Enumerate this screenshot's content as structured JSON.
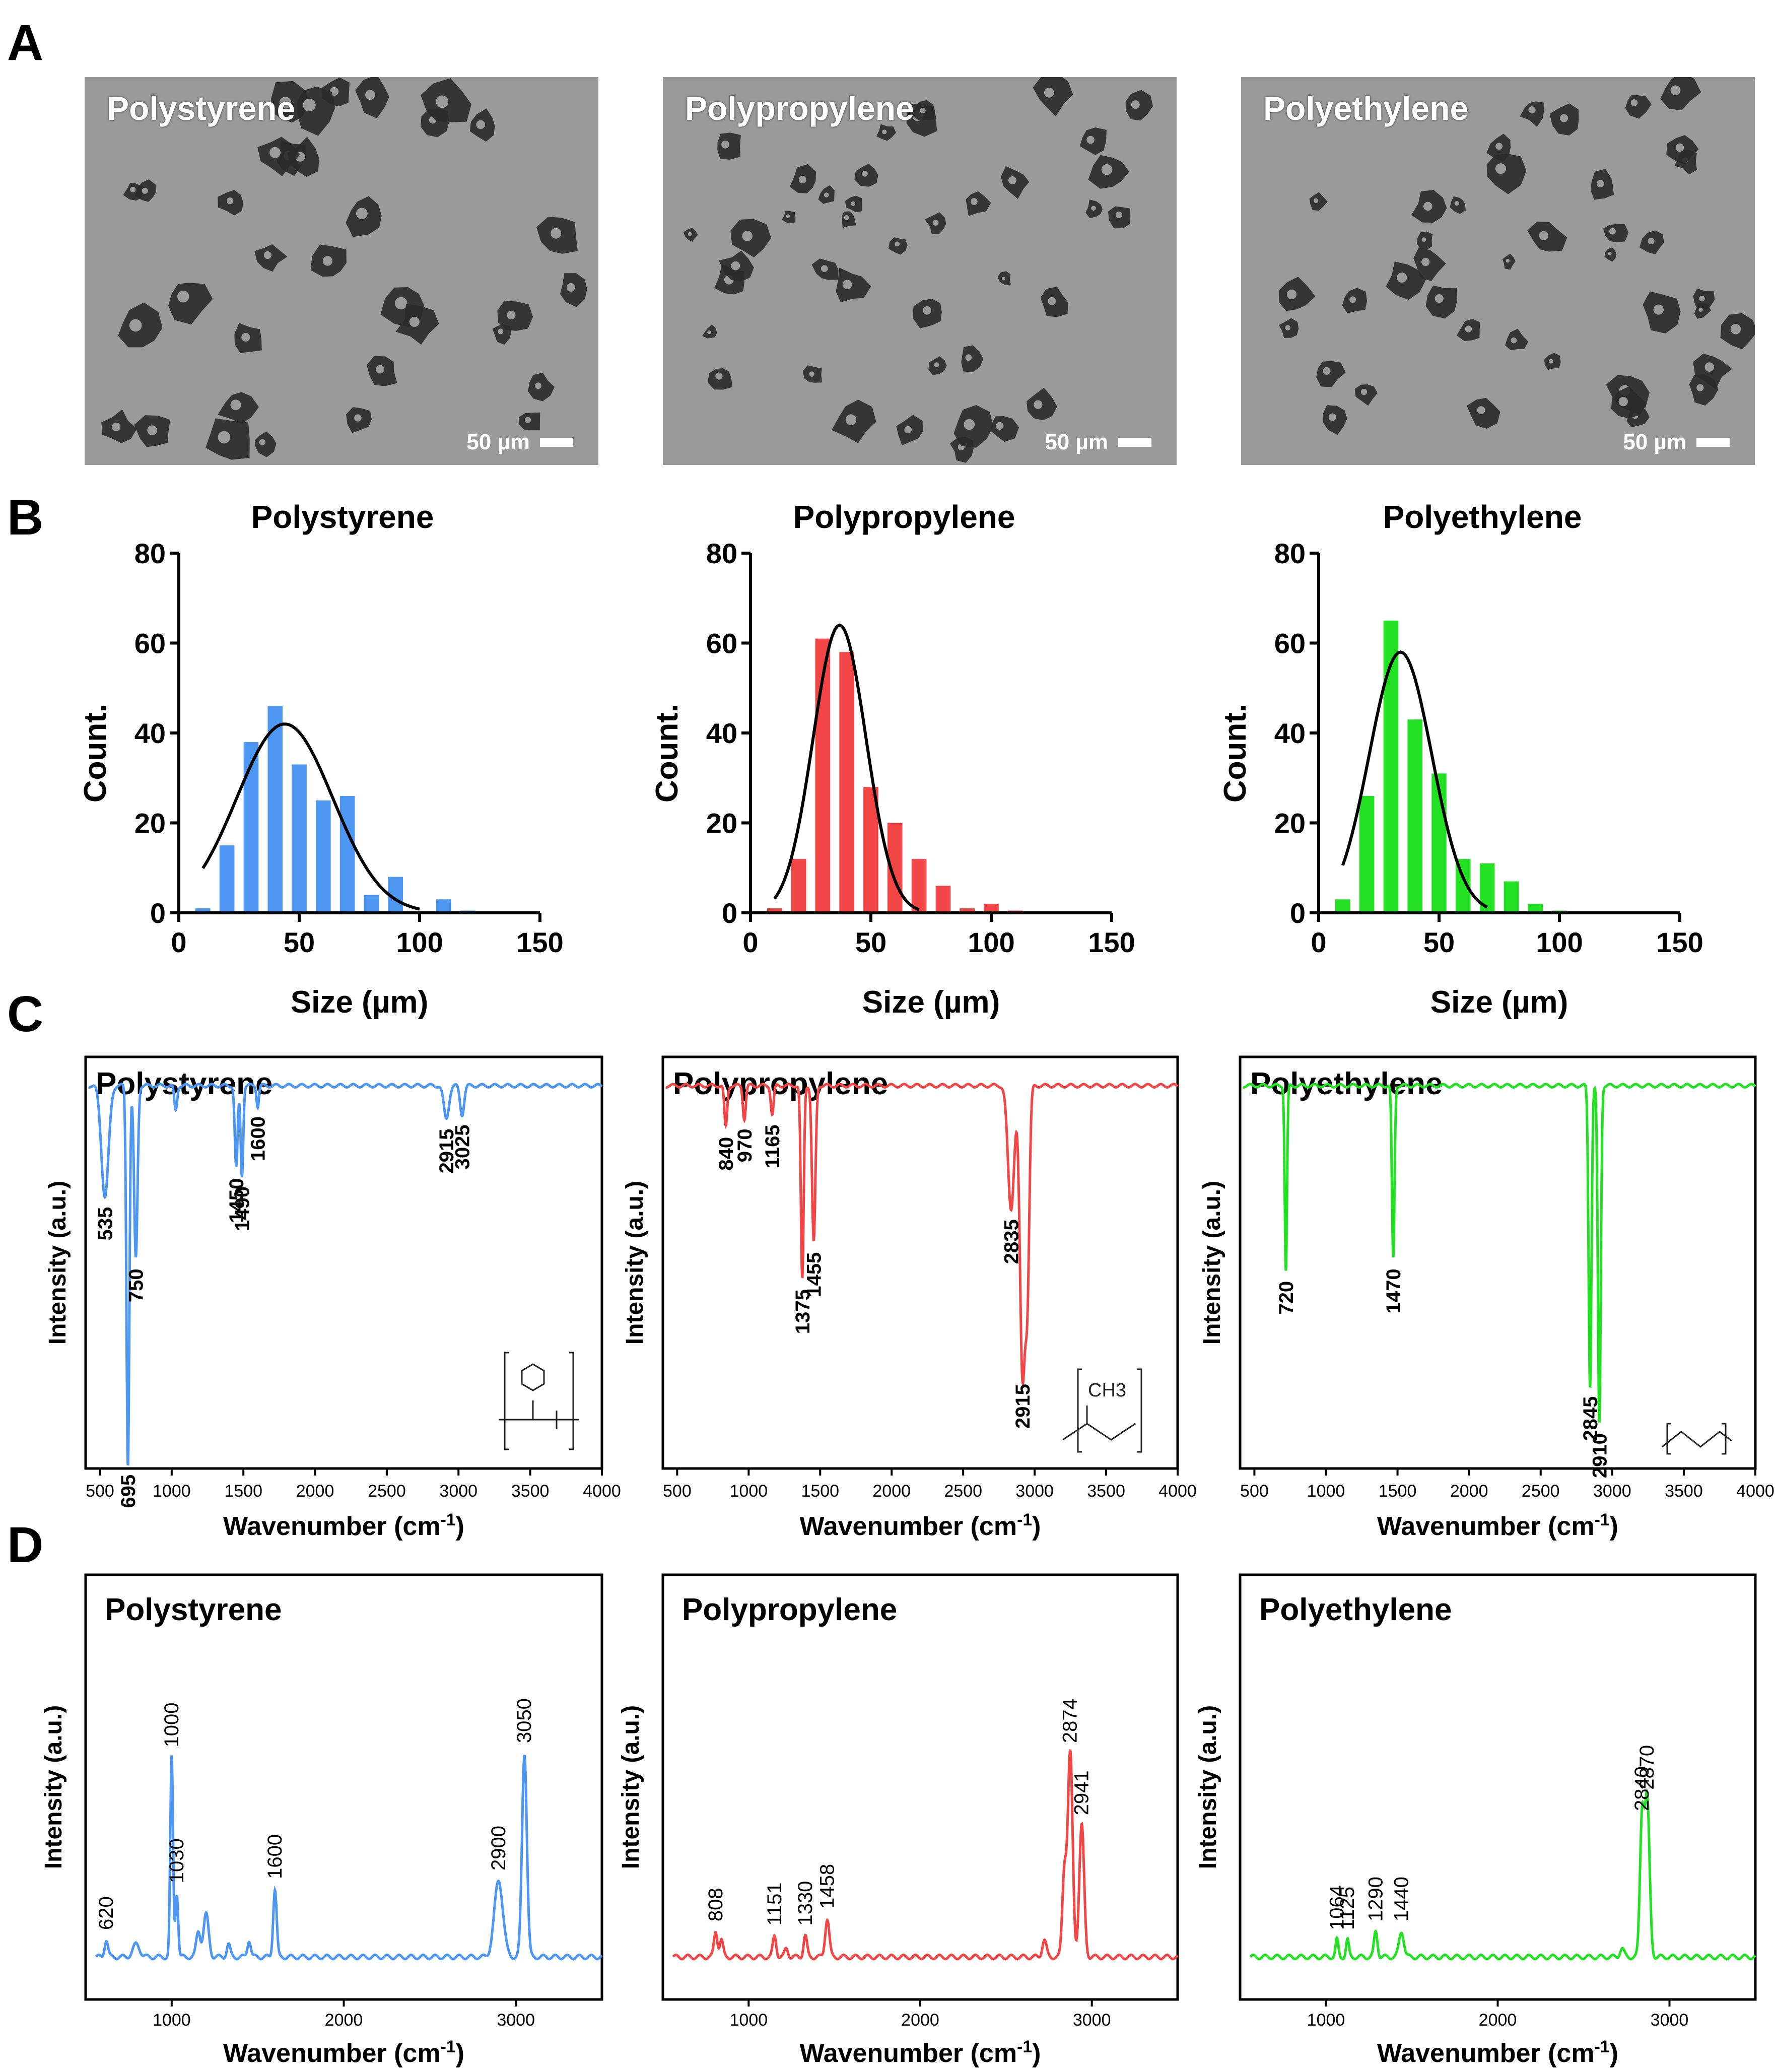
{
  "panel_labels": [
    "A",
    "B",
    "C",
    "D"
  ],
  "colors": {
    "polystyrene": "#4d96f2",
    "polypropylene": "#f24545",
    "polyethylene": "#22e022",
    "fit": "#000000",
    "micro_bg": "#9a9a9a",
    "particle": "#2a2a2a"
  },
  "micrographs": [
    {
      "label": "Polystyrene",
      "scale_label": "50 µm"
    },
    {
      "label": "Polypropylene",
      "scale_label": "50 µm"
    },
    {
      "label": "Polyethylene",
      "scale_label": "50 µm"
    }
  ],
  "chart_data": [
    {
      "panel": "B",
      "type": "bar",
      "title": "Polystyrene",
      "xlabel": "Size (µm)",
      "ylabel": "Count.",
      "xlim": [
        0,
        150
      ],
      "ylim": [
        0,
        80
      ],
      "xticks": [
        0,
        50,
        100,
        150
      ],
      "yticks": [
        0,
        20,
        40,
        60,
        80
      ],
      "bin_width": 5,
      "color": "#4d96f2",
      "bins": [
        10,
        20,
        30,
        40,
        50,
        60,
        70,
        80,
        90,
        100,
        110,
        120
      ],
      "values": [
        1,
        15,
        38,
        46,
        33,
        25,
        26,
        4,
        8,
        0,
        3,
        0.5
      ],
      "fit": {
        "type": "gaussian",
        "mean": 44,
        "sd": 20,
        "peak": 42,
        "x_range": [
          10,
          100
        ]
      }
    },
    {
      "panel": "B",
      "type": "bar",
      "title": "Polypropylene",
      "xlabel": "Size (µm)",
      "ylabel": "Count.",
      "xlim": [
        0,
        150
      ],
      "ylim": [
        0,
        80
      ],
      "xticks": [
        0,
        50,
        100,
        150
      ],
      "yticks": [
        0,
        20,
        40,
        60,
        80
      ],
      "bin_width": 5,
      "color": "#f24545",
      "bins": [
        10,
        20,
        30,
        40,
        50,
        60,
        70,
        80,
        90,
        100,
        110
      ],
      "values": [
        1,
        12,
        61,
        58,
        28,
        20,
        12,
        6,
        1,
        2,
        0.5
      ],
      "fit": {
        "type": "gaussian",
        "mean": 37,
        "sd": 11,
        "peak": 64,
        "x_range": [
          10,
          70
        ]
      }
    },
    {
      "panel": "B",
      "type": "bar",
      "title": "Polyethylene",
      "xlabel": "Size (µm)",
      "ylabel": "Count.",
      "xlim": [
        0,
        150
      ],
      "ylim": [
        0,
        80
      ],
      "xticks": [
        0,
        50,
        100,
        150
      ],
      "yticks": [
        0,
        20,
        40,
        60,
        80
      ],
      "bin_width": 5,
      "color": "#22e022",
      "bins": [
        10,
        20,
        30,
        40,
        50,
        60,
        70,
        80,
        90,
        100
      ],
      "values": [
        3,
        26,
        65,
        43,
        31,
        12,
        11,
        7,
        2,
        0.5
      ],
      "fit": {
        "type": "gaussian",
        "mean": 34,
        "sd": 13,
        "peak": 58,
        "x_range": [
          10,
          70
        ]
      }
    },
    {
      "panel": "C",
      "type": "line",
      "title": "Polystyrene",
      "xlabel": "Wavenumber (cm-1)",
      "ylabel": "Intensity (a.u.)",
      "xlim": [
        400,
        4000
      ],
      "ylim": [
        0,
        1
      ],
      "xticks": [
        500,
        1000,
        1500,
        2000,
        2500,
        3000,
        3500,
        4000
      ],
      "color": "#4d96f2",
      "baseline": 0.93,
      "peaks": [
        {
          "x": 535,
          "depth": 0.27,
          "w": 25,
          "label": "535"
        },
        {
          "x": 695,
          "depth": 0.92,
          "w": 10,
          "label": "695"
        },
        {
          "x": 750,
          "depth": 0.42,
          "w": 12,
          "label": "750"
        },
        {
          "x": 1028,
          "depth": 0.06,
          "w": 10
        },
        {
          "x": 1450,
          "depth": 0.2,
          "w": 10,
          "label": "1450"
        },
        {
          "x": 1490,
          "depth": 0.22,
          "w": 9,
          "label": "1490"
        },
        {
          "x": 1600,
          "depth": 0.05,
          "w": 8,
          "label": "1600"
        },
        {
          "x": 2915,
          "depth": 0.08,
          "w": 18,
          "label": "2915"
        },
        {
          "x": 3025,
          "depth": 0.07,
          "w": 14,
          "label": "3025"
        }
      ],
      "structure_label": "polystyrene repeat unit"
    },
    {
      "panel": "C",
      "type": "line",
      "title": "Polypropylene",
      "xlabel": "Wavenumber (cm-1)",
      "ylabel": "Intensity (a.u.)",
      "xlim": [
        400,
        4000
      ],
      "ylim": [
        0,
        1
      ],
      "xticks": [
        500,
        1000,
        1500,
        2000,
        2500,
        3000,
        3500,
        4000
      ],
      "color": "#f24545",
      "baseline": 0.93,
      "peaks": [
        {
          "x": 840,
          "depth": 0.1,
          "w": 10,
          "label": "840"
        },
        {
          "x": 970,
          "depth": 0.08,
          "w": 10,
          "label": "970"
        },
        {
          "x": 1165,
          "depth": 0.07,
          "w": 10,
          "label": "1165"
        },
        {
          "x": 1375,
          "depth": 0.47,
          "w": 10,
          "label": "1375"
        },
        {
          "x": 1455,
          "depth": 0.38,
          "w": 12,
          "label": "1455"
        },
        {
          "x": 2835,
          "depth": 0.3,
          "w": 22,
          "label": "2835"
        },
        {
          "x": 2915,
          "depth": 0.7,
          "w": 18,
          "label": "2915"
        },
        {
          "x": 2950,
          "depth": 0.45,
          "w": 14
        }
      ],
      "structure_label": "CH3"
    },
    {
      "panel": "C",
      "type": "line",
      "title": "Polyethylene",
      "xlabel": "Wavenumber (cm-1)",
      "ylabel": "Intensity (a.u.)",
      "xlim": [
        400,
        4000
      ],
      "ylim": [
        0,
        1
      ],
      "xticks": [
        500,
        1000,
        1500,
        2000,
        2500,
        3000,
        3500,
        4000
      ],
      "color": "#22e022",
      "baseline": 0.93,
      "peaks": [
        {
          "x": 720,
          "depth": 0.45,
          "w": 8,
          "label": "720"
        },
        {
          "x": 1470,
          "depth": 0.42,
          "w": 9,
          "label": "1470"
        },
        {
          "x": 2845,
          "depth": 0.73,
          "w": 10,
          "label": "2845"
        },
        {
          "x": 2910,
          "depth": 0.82,
          "w": 10,
          "label": "2910"
        }
      ],
      "structure_label": "polyethylene repeat unit"
    },
    {
      "panel": "D",
      "type": "line",
      "title": "Polystyrene",
      "xlabel": "Wavenumber (cm-1)",
      "ylabel": "Intensity (a.u.)",
      "xlim": [
        500,
        3500
      ],
      "ylim": [
        0,
        1
      ],
      "xticks": [
        1000,
        2000,
        3000
      ],
      "color": "#4d96f2",
      "baseline": 0.1,
      "peaks": [
        {
          "x": 620,
          "h": 0.04,
          "w": 10,
          "label": "620"
        },
        {
          "x": 795,
          "h": 0.03,
          "w": 20
        },
        {
          "x": 1000,
          "h": 0.47,
          "w": 8,
          "label": "1000"
        },
        {
          "x": 1030,
          "h": 0.15,
          "w": 8,
          "label": "1030"
        },
        {
          "x": 1155,
          "h": 0.06,
          "w": 12
        },
        {
          "x": 1200,
          "h": 0.1,
          "w": 15
        },
        {
          "x": 1330,
          "h": 0.03,
          "w": 10
        },
        {
          "x": 1450,
          "h": 0.04,
          "w": 10
        },
        {
          "x": 1600,
          "h": 0.16,
          "w": 10,
          "label": "1600"
        },
        {
          "x": 2900,
          "h": 0.18,
          "w": 25,
          "label": "2900"
        },
        {
          "x": 3050,
          "h": 0.48,
          "w": 14,
          "label": "3050"
        }
      ]
    },
    {
      "panel": "D",
      "type": "line",
      "title": "Polypropylene",
      "xlabel": "Wavenumber (cm-1)",
      "ylabel": "Intensity (a.u.)",
      "xlim": [
        500,
        3500
      ],
      "ylim": [
        0,
        1
      ],
      "xticks": [
        1000,
        2000,
        3000
      ],
      "color": "#f24545",
      "baseline": 0.1,
      "peaks": [
        {
          "x": 808,
          "h": 0.06,
          "w": 10,
          "label": "808"
        },
        {
          "x": 841,
          "h": 0.04,
          "w": 10
        },
        {
          "x": 1151,
          "h": 0.05,
          "w": 10,
          "label": "1151"
        },
        {
          "x": 1220,
          "h": 0.02,
          "w": 10
        },
        {
          "x": 1330,
          "h": 0.05,
          "w": 10,
          "label": "1330"
        },
        {
          "x": 1458,
          "h": 0.09,
          "w": 12,
          "label": "1458"
        },
        {
          "x": 2723,
          "h": 0.04,
          "w": 12
        },
        {
          "x": 2840,
          "h": 0.2,
          "w": 12
        },
        {
          "x": 2874,
          "h": 0.48,
          "w": 14,
          "label": "2874"
        },
        {
          "x": 2941,
          "h": 0.31,
          "w": 14,
          "label": "2941"
        }
      ]
    },
    {
      "panel": "D",
      "type": "line",
      "title": "Polyethylene",
      "xlabel": "Wavenumber (cm-1)",
      "ylabel": "Intensity (a.u.)",
      "xlim": [
        500,
        3500
      ],
      "ylim": [
        0,
        1
      ],
      "xticks": [
        1000,
        2000,
        3000
      ],
      "color": "#22e022",
      "baseline": 0.1,
      "peaks": [
        {
          "x": 1064,
          "h": 0.04,
          "w": 8,
          "label": "1064"
        },
        {
          "x": 1125,
          "h": 0.04,
          "w": 8,
          "label": "1125"
        },
        {
          "x": 1290,
          "h": 0.06,
          "w": 10,
          "label": "1290"
        },
        {
          "x": 1440,
          "h": 0.06,
          "w": 14,
          "label": "1440"
        },
        {
          "x": 2723,
          "h": 0.02,
          "w": 12
        },
        {
          "x": 2840,
          "h": 0.32,
          "w": 12,
          "label": "2840"
        },
        {
          "x": 2870,
          "h": 0.37,
          "w": 14,
          "label": "2870"
        }
      ]
    }
  ]
}
